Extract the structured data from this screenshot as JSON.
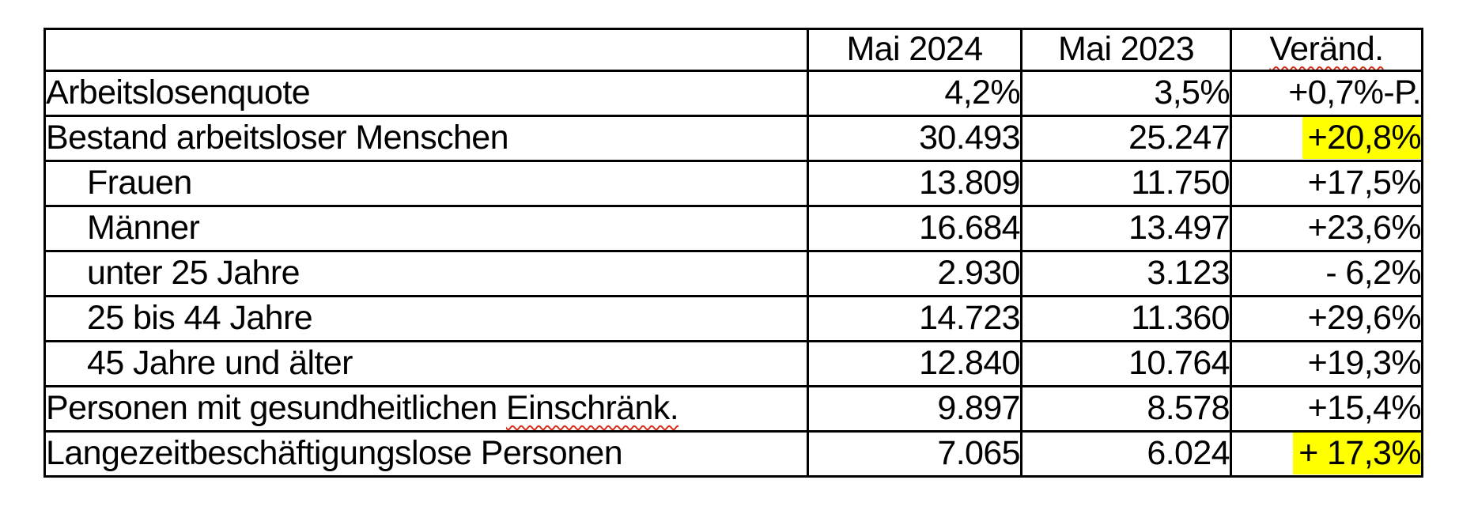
{
  "table": {
    "header": {
      "label": "",
      "col_2024": "Mai 2024",
      "col_2023": "Mai 2023",
      "col_change": "Veränd."
    },
    "rows": [
      {
        "label": "Arbeitslosenquote",
        "v2024": "4,2%",
        "v2023": "3,5%",
        "change": "+0,7%-P."
      },
      {
        "label": "Bestand arbeitsloser Menschen",
        "v2024": "30.493",
        "v2023": "25.247",
        "change": "+20,8%",
        "highlighted": true
      },
      {
        "label": "Frauen",
        "indent": true,
        "v2024": "13.809",
        "v2023": "11.750",
        "change": "+17,5%"
      },
      {
        "label": "Männer",
        "indent": true,
        "v2024": "16.684",
        "v2023": "13.497",
        "change": "+23,6%"
      },
      {
        "label": "unter 25 Jahre",
        "indent": true,
        "v2024": "2.930",
        "v2023": "3.123",
        "change": "- 6,2%"
      },
      {
        "label": "25 bis 44 Jahre",
        "indent": true,
        "v2024": "14.723",
        "v2023": "11.360",
        "change": "+29,6%"
      },
      {
        "label": "45 Jahre und älter",
        "indent": true,
        "v2024": "12.840",
        "v2023": "10.764",
        "change": "+19,3%"
      },
      {
        "label_prefix": "Personen mit gesundheitlichen ",
        "label_misspelled": "Einschränk.",
        "v2024": "9.897",
        "v2023": "8.578",
        "change": "+15,4%"
      },
      {
        "label": "Langezeitbeschäftigungslose Personen",
        "v2024": "7.065",
        "v2023": "6.024",
        "change": "+ 17,3%",
        "highlighted": true
      }
    ]
  },
  "colors": {
    "highlight": "#ffff00",
    "spellcheck_underline": "#d8301f",
    "border": "#000000",
    "text": "#000000",
    "background": "#ffffff"
  }
}
